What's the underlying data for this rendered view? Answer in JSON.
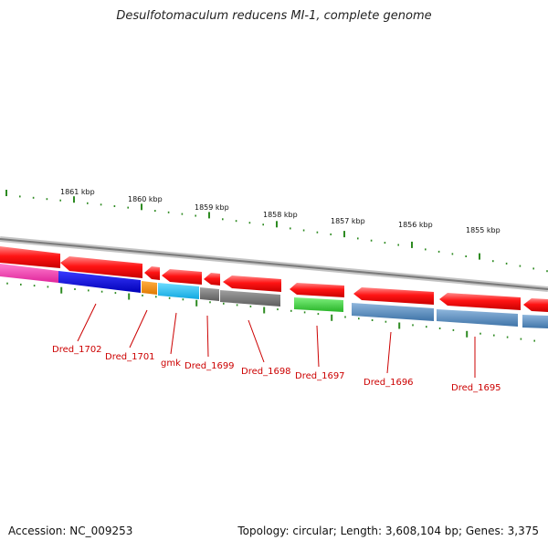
{
  "title": "Desulfotomaculum reducens MI-1, complete genome",
  "footer": {
    "accession": "Accession: NC_009253",
    "summary": "Topology: circular; Length: 3,608,104 bp; Genes: 3,375"
  },
  "ticks": [
    {
      "label": "1861 kbp"
    },
    {
      "label": "1860 kbp"
    },
    {
      "label": "1859 kbp"
    },
    {
      "label": "1858 kbp"
    },
    {
      "label": "1857 kbp"
    },
    {
      "label": "1856 kbp"
    },
    {
      "label": "1855 kbp"
    }
  ],
  "genes": [
    {
      "label": "Dred_1702"
    },
    {
      "label": "Dred_1701"
    },
    {
      "label": "gmk"
    },
    {
      "label": "Dred_1699"
    },
    {
      "label": "Dred_1698"
    },
    {
      "label": "Dred_1697"
    },
    {
      "label": "Dred_1696"
    },
    {
      "label": "Dred_1695"
    }
  ],
  "colors": {
    "cds": "#ff1a1a",
    "tick": "#2e8b22",
    "label": "#cc0000",
    "backbone": "#9a9a9a"
  }
}
